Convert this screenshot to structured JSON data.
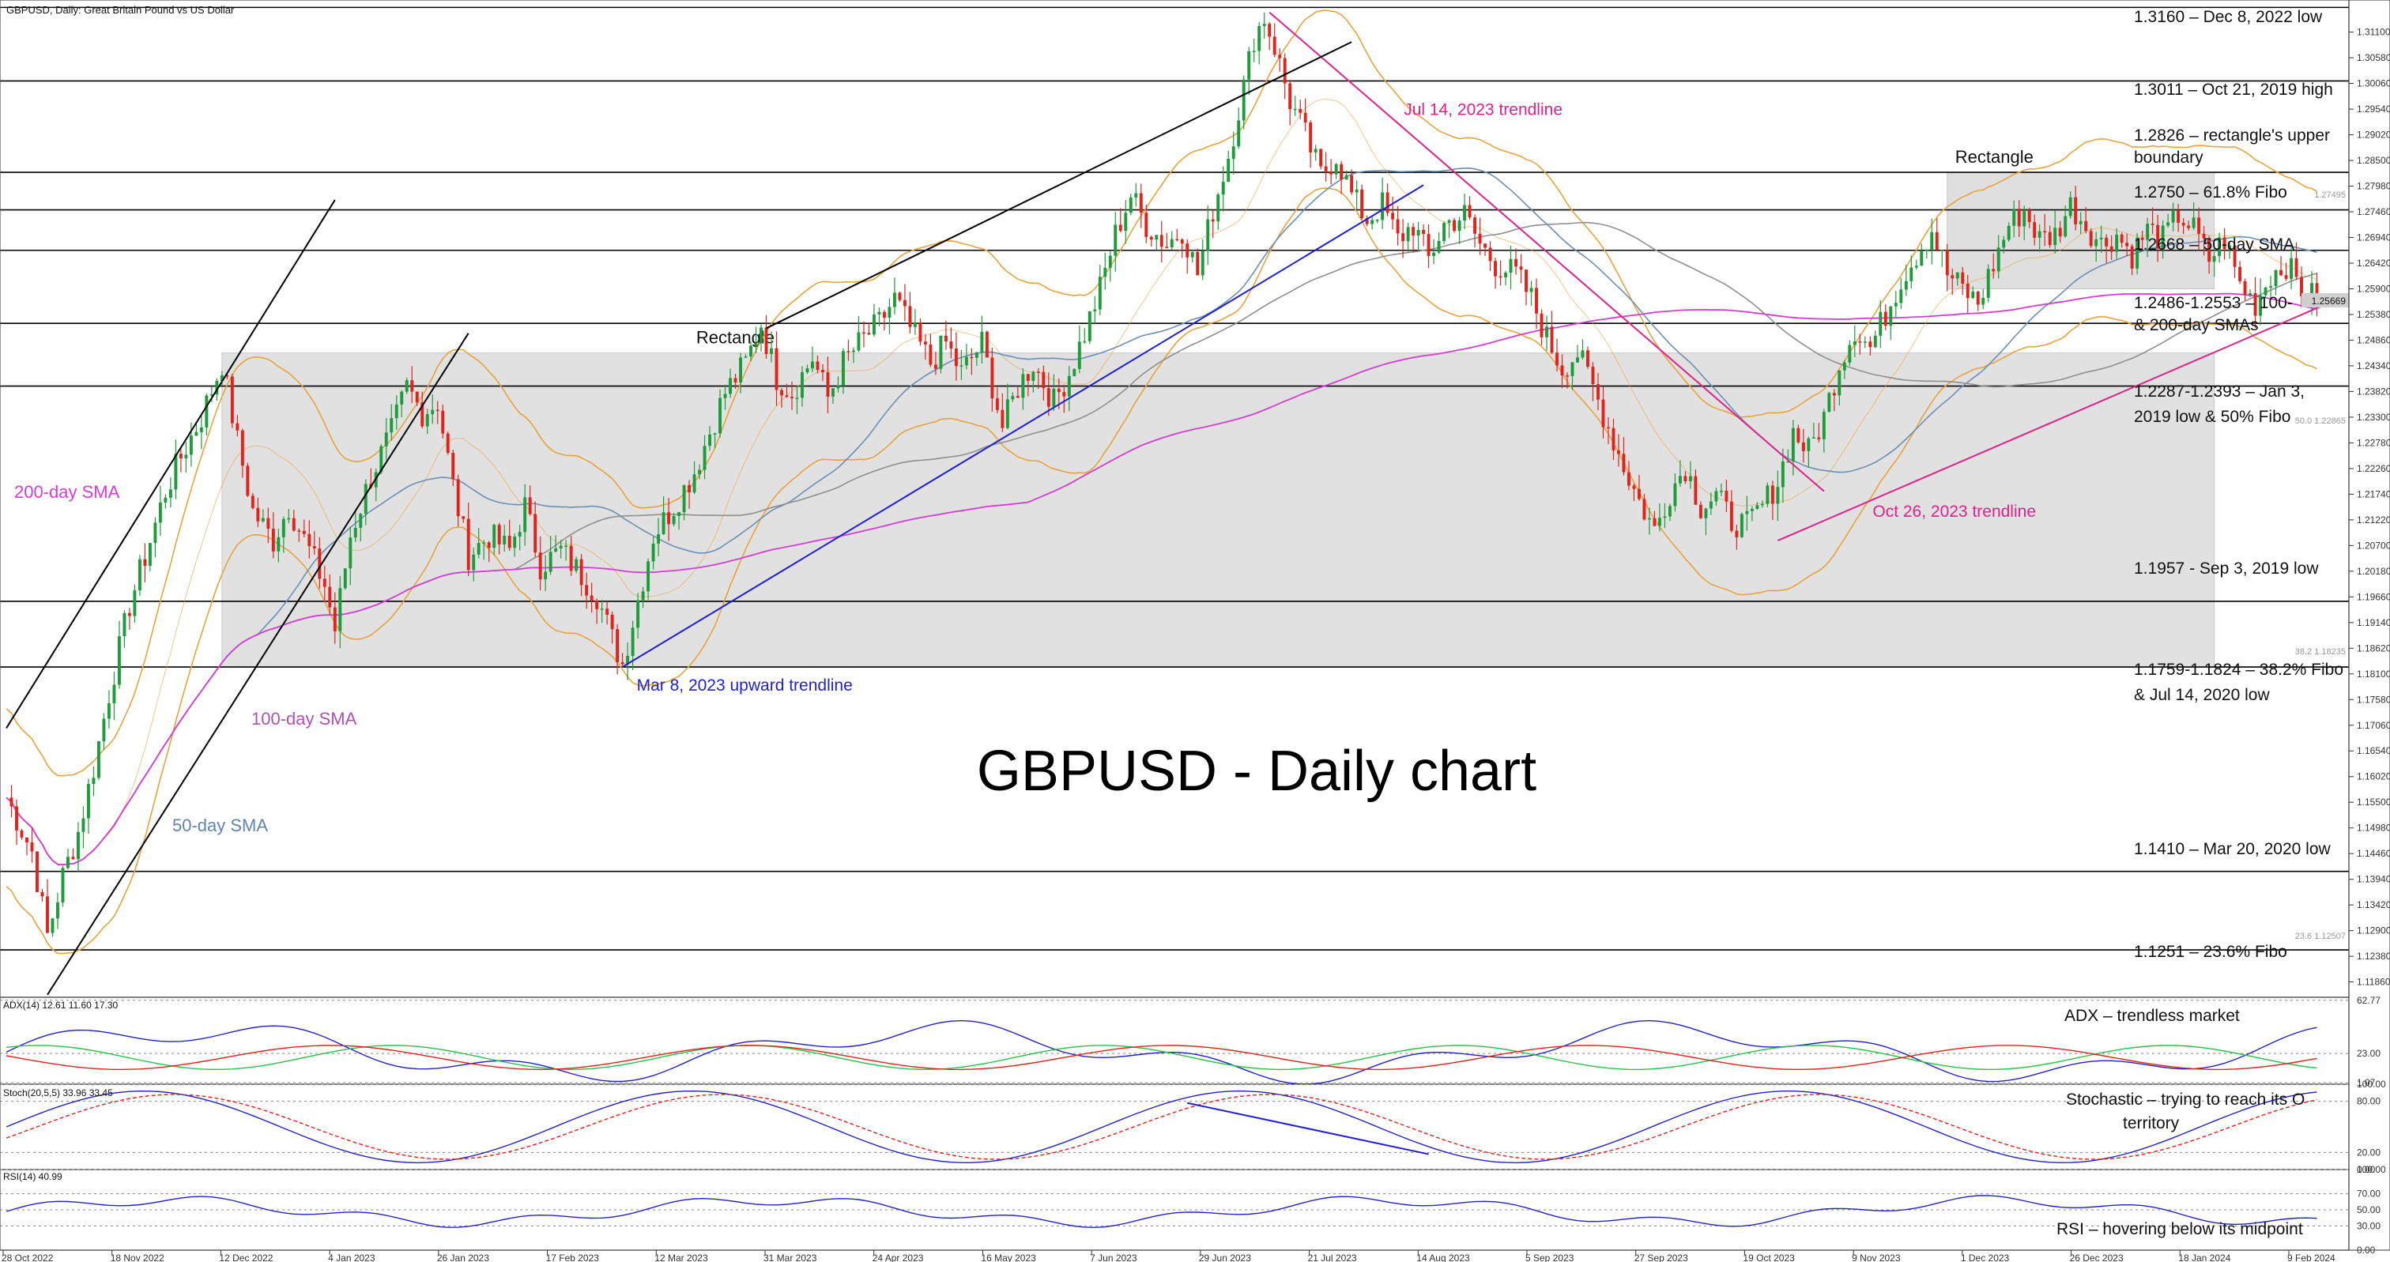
{
  "header": {
    "title": "GBPUSD, Daily:  Great Britain Pound vs US Dollar"
  },
  "main_title": "GBPUSD - Daily chart",
  "colors": {
    "bull": "#1e9b3a",
    "bear": "#e0231b",
    "sma50": "#6b8fb5",
    "sma100": "#8f8f8f",
    "sma200": "#d63cd6",
    "bollinger": "#e8a33d",
    "trend_black": "#000000",
    "trend_blue": "#1f1fd6",
    "trend_pink": "#e0218a",
    "rect_fill": "#dcdcdc",
    "adx_main": "#2222cc",
    "adx_plus": "#27c24a",
    "adx_minus": "#e0231b",
    "stoch_main": "#2222cc",
    "stoch_signal": "#e0231b",
    "rsi": "#2222cc"
  },
  "chart_data": {
    "type": "line",
    "title": "GBPUSD - Daily chart",
    "series_kind": "candlestick (OHLC daily)",
    "date_ticks": [
      "28 Oct 2022",
      "18 Nov 2022",
      "12 Dec 2022",
      "4 Jan 2023",
      "26 Jan 2023",
      "17 Feb 2023",
      "12 Mar 2023",
      "31 Mar 2023",
      "24 Apr 2023",
      "16 May 2023",
      "7 Jun 2023",
      "29 Jun 2023",
      "21 Jul 2023",
      "14 Aug 2023",
      "5 Sep 2023",
      "27 Sep 2023",
      "19 Oct 2023",
      "9 Nov 2023",
      "1 Dec 2023",
      "26 Dec 2023",
      "18 Jan 2024",
      "9 Feb 2024"
    ],
    "price_ticks": [
      "1.31100",
      "1.30580",
      "1.30060",
      "1.29540",
      "1.29020",
      "1.28500",
      "1.27980",
      "1.27460",
      "1.26940",
      "1.26420",
      "1.25900",
      "1.25380",
      "1.24860",
      "1.24340",
      "1.23820",
      "1.23300",
      "1.22780",
      "1.22260",
      "1.21740",
      "1.21220",
      "1.20700",
      "1.20180",
      "1.19660",
      "1.19140",
      "1.18620",
      "1.18100",
      "1.17580",
      "1.17060",
      "1.16540",
      "1.16020",
      "1.15500",
      "1.14980",
      "1.14460",
      "1.13940",
      "1.13420",
      "1.12900",
      "1.12380",
      "1.11860"
    ],
    "ylim": [
      1.1155,
      1.3175
    ],
    "current_price_label": "1.25669",
    "fibo_price_labels": [
      "1.27495",
      "50.0  1.22865",
      "38.2  1.18235",
      "23.6  1.12507"
    ],
    "close_path": [
      [
        0,
        1.156
      ],
      [
        5,
        1.145
      ],
      [
        8,
        1.128
      ],
      [
        11,
        1.14
      ],
      [
        14,
        1.149
      ],
      [
        17,
        1.162
      ],
      [
        20,
        1.177
      ],
      [
        24,
        1.195
      ],
      [
        28,
        1.208
      ],
      [
        31,
        1.218
      ],
      [
        34,
        1.225
      ],
      [
        38,
        1.233
      ],
      [
        42,
        1.244
      ],
      [
        45,
        1.228
      ],
      [
        48,
        1.214
      ],
      [
        52,
        1.208
      ],
      [
        55,
        1.215
      ],
      [
        59,
        1.206
      ],
      [
        62,
        1.199
      ],
      [
        64,
        1.19
      ],
      [
        67,
        1.209
      ],
      [
        71,
        1.221
      ],
      [
        75,
        1.23
      ],
      [
        78,
        1.239
      ],
      [
        81,
        1.234
      ],
      [
        84,
        1.236
      ],
      [
        87,
        1.219
      ],
      [
        90,
        1.205
      ],
      [
        94,
        1.209
      ],
      [
        98,
        1.206
      ],
      [
        101,
        1.215
      ],
      [
        104,
        1.203
      ],
      [
        108,
        1.206
      ],
      [
        112,
        1.201
      ],
      [
        115,
        1.197
      ],
      [
        118,
        1.188
      ],
      [
        120,
        1.183
      ],
      [
        123,
        1.196
      ],
      [
        126,
        1.209
      ],
      [
        130,
        1.215
      ],
      [
        134,
        1.222
      ],
      [
        137,
        1.23
      ],
      [
        140,
        1.238
      ],
      [
        144,
        1.244
      ],
      [
        147,
        1.252
      ],
      [
        150,
        1.241
      ],
      [
        153,
        1.238
      ],
      [
        157,
        1.245
      ],
      [
        160,
        1.237
      ],
      [
        163,
        1.244
      ],
      [
        167,
        1.249
      ],
      [
        170,
        1.252
      ],
      [
        173,
        1.257
      ],
      [
        176,
        1.251
      ],
      [
        180,
        1.244
      ],
      [
        183,
        1.248
      ],
      [
        186,
        1.242
      ],
      [
        190,
        1.248
      ],
      [
        194,
        1.231
      ],
      [
        197,
        1.239
      ],
      [
        200,
        1.244
      ],
      [
        204,
        1.236
      ],
      [
        207,
        1.242
      ],
      [
        210,
        1.25
      ],
      [
        213,
        1.259
      ],
      [
        216,
        1.27
      ],
      [
        219,
        1.278
      ],
      [
        222,
        1.272
      ],
      [
        226,
        1.268
      ],
      [
        229,
        1.271
      ],
      [
        232,
        1.262
      ],
      [
        235,
        1.275
      ],
      [
        238,
        1.286
      ],
      [
        241,
        1.3
      ],
      [
        243,
        1.31
      ],
      [
        245,
        1.314
      ],
      [
        247,
        1.308
      ],
      [
        250,
        1.297
      ],
      [
        253,
        1.29
      ],
      [
        256,
        1.282
      ],
      [
        259,
        1.286
      ],
      [
        262,
        1.278
      ],
      [
        265,
        1.273
      ],
      [
        268,
        1.276
      ],
      [
        271,
        1.269
      ],
      [
        274,
        1.272
      ],
      [
        277,
        1.265
      ],
      [
        280,
        1.272
      ],
      [
        284,
        1.274
      ],
      [
        287,
        1.268
      ],
      [
        290,
        1.264
      ],
      [
        294,
        1.262
      ],
      [
        297,
        1.257
      ],
      [
        300,
        1.249
      ],
      [
        303,
        1.243
      ],
      [
        306,
        1.246
      ],
      [
        309,
        1.239
      ],
      [
        312,
        1.231
      ],
      [
        315,
        1.223
      ],
      [
        318,
        1.216
      ],
      [
        321,
        1.21
      ],
      [
        324,
        1.218
      ],
      [
        327,
        1.223
      ],
      [
        330,
        1.215
      ],
      [
        333,
        1.217
      ],
      [
        336,
        1.212
      ],
      [
        339,
        1.211
      ],
      [
        342,
        1.215
      ],
      [
        345,
        1.22
      ],
      [
        348,
        1.23
      ],
      [
        351,
        1.226
      ],
      [
        354,
        1.233
      ],
      [
        357,
        1.244
      ],
      [
        360,
        1.251
      ],
      [
        363,
        1.247
      ],
      [
        366,
        1.254
      ],
      [
        369,
        1.261
      ],
      [
        372,
        1.266
      ],
      [
        375,
        1.271
      ],
      [
        378,
        1.262
      ],
      [
        381,
        1.259
      ],
      [
        384,
        1.256
      ],
      [
        387,
        1.264
      ],
      [
        390,
        1.272
      ],
      [
        393,
        1.275
      ],
      [
        396,
        1.269
      ],
      [
        399,
        1.27
      ],
      [
        402,
        1.276
      ],
      [
        405,
        1.272
      ],
      [
        408,
        1.268
      ],
      [
        411,
        1.27
      ],
      [
        414,
        1.266
      ],
      [
        417,
        1.271
      ],
      [
        420,
        1.269
      ],
      [
        423,
        1.274
      ],
      [
        426,
        1.271
      ],
      [
        429,
        1.265
      ],
      [
        432,
        1.269
      ],
      [
        435,
        1.26
      ],
      [
        438,
        1.256
      ],
      [
        441,
        1.262
      ],
      [
        444,
        1.264
      ],
      [
        447,
        1.259
      ],
      [
        450,
        1.2567
      ]
    ],
    "horizontal_levels": [
      {
        "price": 1.316,
        "label": "1.3160 – Dec 8, 2022 low"
      },
      {
        "price": 1.3011,
        "label": "1.3011 – Oct 21, 2019 high"
      },
      {
        "price": 1.2826,
        "label": "1.2826 – rectangle's upper boundary"
      },
      {
        "price": 1.275,
        "label": "1.2750 – 61.8% Fibo"
      },
      {
        "price": 1.2668,
        "label": "1.2668 – 50-day SMA"
      },
      {
        "price": 1.252,
        "label": "1.2486-1.2553 – 100-& 200-day SMAs"
      },
      {
        "price": 1.2393,
        "label": "1.2287-1.2393 – Jan 3, 2019 low & 50% Fibo"
      },
      {
        "price": 1.1957,
        "label": "1.1957 - Sep 3, 2019 low"
      },
      {
        "price": 1.1824,
        "label": "1.1759-1.1824 – 38.2% Fibo & Jul 14, 2020 low"
      },
      {
        "price": 1.141,
        "label": "1.1410 – Mar 20, 2020 low"
      },
      {
        "price": 1.1251,
        "label": "1.1251 – 23.6% Fibo"
      }
    ],
    "rectangles": [
      {
        "label": "Rectangle",
        "from": 42,
        "to": 430,
        "low": 1.1824,
        "high": 1.246
      },
      {
        "label": "Rectangle",
        "from": 378,
        "to": 430,
        "low": 1.259,
        "high": 1.2826
      }
    ],
    "trendlines": [
      {
        "label": "Mar 8, 2023 upward trendline",
        "from": [
          120,
          1.1824
        ],
        "to": [
          276,
          1.28
        ]
      },
      {
        "label": "Jul 14, 2023 trendline",
        "from": [
          246,
          1.315
        ],
        "to": [
          354,
          1.218
        ]
      },
      {
        "label": "Oct 26, 2023 trendline",
        "from": [
          345,
          1.208
        ],
        "to": [
          452,
          1.256
        ]
      },
      {
        "label": "",
        "from": [
          148,
          1.251
        ],
        "to": [
          262,
          1.309
        ]
      },
      {
        "label": "",
        "from": [
          0,
          1.17
        ],
        "to": [
          64,
          1.277
        ]
      },
      {
        "label": "",
        "from": [
          8,
          1.116
        ],
        "to": [
          90,
          1.25
        ]
      }
    ],
    "indicator_labels": {
      "sma200": "200-day SMA",
      "sma100": "100-day SMA",
      "sma50": "50-day SMA"
    },
    "adx": {
      "header": "ADX(14) 12.61 11.60 17.30",
      "note": "ADX – trendless market",
      "levels": [
        "62.77",
        "23.00",
        "1.07"
      ]
    },
    "stochastic": {
      "header": "Stoch(20,5,5) 33.96 33.45",
      "note": "Stochastic – trying to reach its OS territory",
      "levels": [
        "100.00",
        "80.00",
        "20.00",
        "0.00"
      ]
    },
    "rsi": {
      "header": "RSI(14) 40.99",
      "note": "RSI – hovering below its midpoint",
      "levels": [
        "100.00",
        "70.00",
        "50.00",
        "30.00",
        "0.00"
      ]
    }
  }
}
